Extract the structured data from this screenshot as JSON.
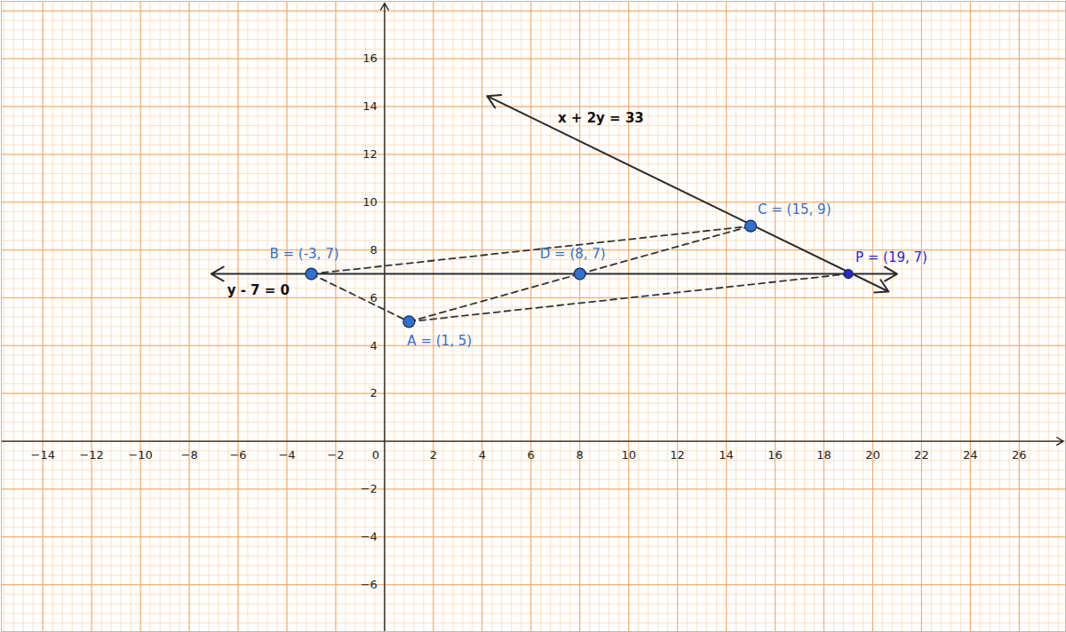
{
  "chart_data": {
    "type": "scatter",
    "xlim": [
      -15.7,
      27.9
    ],
    "ylim": [
      -7.96,
      18.4
    ],
    "xticks": [
      -14,
      -12,
      -10,
      -8,
      -6,
      -4,
      -2,
      0,
      2,
      4,
      6,
      8,
      10,
      12,
      14,
      16,
      18,
      20,
      22,
      24,
      26
    ],
    "yticks": [
      -6,
      -4,
      -2,
      2,
      4,
      6,
      8,
      10,
      12,
      14,
      16
    ],
    "grid": true,
    "points": [
      {
        "label": "A = (1, 5)",
        "x": 1,
        "y": 5,
        "color": "#2f6fd0",
        "position": "below"
      },
      {
        "label": "B = (-3, 7)",
        "x": -3,
        "y": 7,
        "color": "#2f6fd0",
        "position": "above"
      },
      {
        "label": "C = (15, 9)",
        "x": 15,
        "y": 9,
        "color": "#2f6fd0",
        "position": "right"
      },
      {
        "label": "D = (8, 7)",
        "x": 8,
        "y": 7,
        "color": "#2f6fd0",
        "position": "above"
      },
      {
        "label": "P = (19, 7)",
        "x": 19,
        "y": 7,
        "color": "#2626d4",
        "position": "right"
      }
    ],
    "lines": [
      {
        "label": "x + 2y = 33",
        "x": [
          4.2,
          20.65
        ],
        "y": [
          14.44,
          6.26
        ],
        "label_at": [
          7.1,
          13.5
        ],
        "line_style": "solid"
      },
      {
        "label": "y - 7 = 0",
        "x": [
          -7.1,
          21.0
        ],
        "y": [
          7,
          7
        ],
        "label_at": [
          -6.45,
          6.3
        ],
        "line_style": "solid"
      }
    ],
    "segments": [
      {
        "x": [
          -3,
          1
        ],
        "y": [
          7,
          5
        ],
        "line_style": "dashed"
      },
      {
        "x": [
          1,
          8
        ],
        "y": [
          5,
          7
        ],
        "line_style": "dashed"
      },
      {
        "x": [
          8,
          15
        ],
        "y": [
          7,
          9
        ],
        "line_style": "dashed"
      },
      {
        "x": [
          -3,
          15
        ],
        "y": [
          7,
          9
        ],
        "line_style": "dashed"
      },
      {
        "x": [
          1,
          19
        ],
        "y": [
          5,
          7
        ],
        "line_style": "dashed"
      }
    ]
  }
}
